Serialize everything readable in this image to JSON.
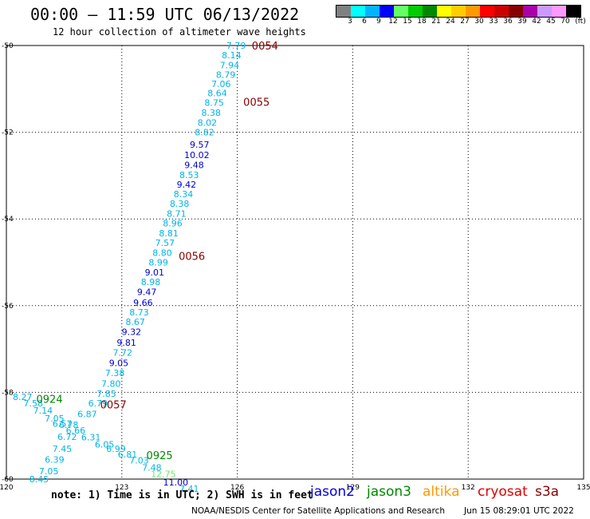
{
  "header": {
    "title": "00:00 – 11:59 UTC 06/13/2022",
    "subtitle": "12 hour collection of altimeter wave heights"
  },
  "legend": {
    "unit": "(ft)",
    "colors": [
      "#808080",
      "#00ffff",
      "#00b4ff",
      "#0000ff",
      "#64ff64",
      "#00cc00",
      "#008800",
      "#ffff00",
      "#ffcc00",
      "#ff9900",
      "#ff0000",
      "#cc0000",
      "#880000",
      "#aa00aa",
      "#cc99ff",
      "#ff99ff",
      "#000000"
    ],
    "labels": [
      "3",
      "6",
      "9",
      "12",
      "15",
      "18",
      "21",
      "24",
      "27",
      "30",
      "33",
      "36",
      "39",
      "42",
      "45",
      "70"
    ]
  },
  "map": {
    "x_ticks": [
      "120",
      "123",
      "126",
      "129",
      "132",
      "135"
    ],
    "y_ticks": [
      "-50",
      "-52",
      "-54",
      "-56",
      "-58",
      "-60"
    ],
    "lon_range": [
      120,
      135
    ],
    "lat_range": [
      -60,
      -50
    ]
  },
  "colors": {
    "cyan": "#00b4e6",
    "blue": "#0000cc",
    "lightgreen": "#66ee66",
    "time_dark": "#880000",
    "time_green": "#008800"
  },
  "wave_heights": [
    {
      "text": "7.79",
      "lon": 125.97,
      "lat": -50.0,
      "color": "cyan"
    },
    {
      "text": "8.14",
      "lon": 125.85,
      "lat": -50.22,
      "color": "cyan"
    },
    {
      "text": "7.94",
      "lon": 125.8,
      "lat": -50.45,
      "color": "cyan"
    },
    {
      "text": "8.79",
      "lon": 125.7,
      "lat": -50.67,
      "color": "cyan"
    },
    {
      "text": "7.06",
      "lon": 125.58,
      "lat": -50.88,
      "color": "cyan"
    },
    {
      "text": "8.64",
      "lon": 125.48,
      "lat": -51.1,
      "color": "cyan"
    },
    {
      "text": "8.75",
      "lon": 125.4,
      "lat": -51.32,
      "color": "cyan"
    },
    {
      "text": "8.38",
      "lon": 125.32,
      "lat": -51.55,
      "color": "cyan"
    },
    {
      "text": "8.02",
      "lon": 125.22,
      "lat": -51.78,
      "color": "cyan"
    },
    {
      "text": "8.82",
      "lon": 125.15,
      "lat": -52.0,
      "color": "cyan"
    },
    {
      "text": "9.57",
      "lon": 125.02,
      "lat": -52.28,
      "color": "blue"
    },
    {
      "text": "10.02",
      "lon": 124.95,
      "lat": -52.52,
      "color": "blue"
    },
    {
      "text": "9.48",
      "lon": 124.88,
      "lat": -52.75,
      "color": "blue"
    },
    {
      "text": "8.53",
      "lon": 124.75,
      "lat": -52.98,
      "color": "cyan"
    },
    {
      "text": "9.42",
      "lon": 124.68,
      "lat": -53.2,
      "color": "blue"
    },
    {
      "text": "8.34",
      "lon": 124.6,
      "lat": -53.43,
      "color": "cyan"
    },
    {
      "text": "8.38",
      "lon": 124.5,
      "lat": -53.65,
      "color": "cyan"
    },
    {
      "text": "8.71",
      "lon": 124.42,
      "lat": -53.88,
      "color": "cyan"
    },
    {
      "text": "8.96",
      "lon": 124.32,
      "lat": -54.1,
      "color": "cyan"
    },
    {
      "text": "8.81",
      "lon": 124.22,
      "lat": -54.33,
      "color": "cyan"
    },
    {
      "text": "7.57",
      "lon": 124.12,
      "lat": -54.55,
      "color": "cyan"
    },
    {
      "text": "8.80",
      "lon": 124.05,
      "lat": -54.78,
      "color": "cyan"
    },
    {
      "text": "8.99",
      "lon": 123.95,
      "lat": -55.0,
      "color": "cyan"
    },
    {
      "text": "9.01",
      "lon": 123.85,
      "lat": -55.23,
      "color": "blue"
    },
    {
      "text": "8.98",
      "lon": 123.75,
      "lat": -55.45,
      "color": "cyan"
    },
    {
      "text": "9.47",
      "lon": 123.65,
      "lat": -55.68,
      "color": "blue"
    },
    {
      "text": "9.66",
      "lon": 123.55,
      "lat": -55.93,
      "color": "blue"
    },
    {
      "text": "8.73",
      "lon": 123.45,
      "lat": -56.15,
      "color": "cyan"
    },
    {
      "text": "8.67",
      "lon": 123.35,
      "lat": -56.37,
      "color": "cyan"
    },
    {
      "text": "9.32",
      "lon": 123.25,
      "lat": -56.6,
      "color": "blue"
    },
    {
      "text": "9.81",
      "lon": 123.12,
      "lat": -56.85,
      "color": "blue"
    },
    {
      "text": "7.72",
      "lon": 123.02,
      "lat": -57.08,
      "color": "cyan"
    },
    {
      "text": "9.05",
      "lon": 122.92,
      "lat": -57.32,
      "color": "blue"
    },
    {
      "text": "7.38",
      "lon": 122.82,
      "lat": -57.55,
      "color": "cyan"
    },
    {
      "text": "7.80",
      "lon": 122.72,
      "lat": -57.8,
      "color": "cyan"
    },
    {
      "text": "7.85",
      "lon": 122.6,
      "lat": -58.03,
      "color": "cyan"
    },
    {
      "text": "6.79",
      "lon": 122.38,
      "lat": -58.25,
      "color": "cyan"
    },
    {
      "text": "6.87",
      "lon": 122.1,
      "lat": -58.5,
      "color": "cyan"
    },
    {
      "text": "8.27",
      "lon": 120.42,
      "lat": -58.1,
      "color": "cyan"
    },
    {
      "text": "7.58",
      "lon": 120.7,
      "lat": -58.25,
      "color": "cyan"
    },
    {
      "text": "7.14",
      "lon": 120.95,
      "lat": -58.42,
      "color": "cyan"
    },
    {
      "text": "7.05",
      "lon": 121.25,
      "lat": -58.6,
      "color": "cyan"
    },
    {
      "text": "6.57",
      "lon": 121.45,
      "lat": -58.72,
      "color": "cyan"
    },
    {
      "text": "6.78",
      "lon": 121.62,
      "lat": -58.75,
      "color": "cyan"
    },
    {
      "text": "6.66",
      "lon": 121.8,
      "lat": -58.88,
      "color": "cyan"
    },
    {
      "text": "6.72",
      "lon": 121.58,
      "lat": -59.02,
      "color": "cyan"
    },
    {
      "text": "6.31",
      "lon": 122.2,
      "lat": -59.03,
      "color": "cyan"
    },
    {
      "text": "6.05",
      "lon": 122.55,
      "lat": -59.2,
      "color": "cyan"
    },
    {
      "text": "7.45",
      "lon": 121.45,
      "lat": -59.3,
      "color": "cyan"
    },
    {
      "text": "6.99",
      "lon": 122.85,
      "lat": -59.3,
      "color": "cyan"
    },
    {
      "text": "6.81",
      "lon": 123.15,
      "lat": -59.43,
      "color": "cyan"
    },
    {
      "text": "6.39",
      "lon": 121.25,
      "lat": -59.55,
      "color": "cyan"
    },
    {
      "text": "7.03",
      "lon": 123.45,
      "lat": -59.57,
      "color": "cyan"
    },
    {
      "text": "7.48",
      "lon": 123.78,
      "lat": -59.73,
      "color": "cyan"
    },
    {
      "text": "7.05",
      "lon": 121.1,
      "lat": -59.82,
      "color": "cyan"
    },
    {
      "text": "12.75",
      "lon": 124.08,
      "lat": -59.88,
      "color": "lightgreen"
    },
    {
      "text": "8.45",
      "lon": 120.85,
      "lat": -60.0,
      "color": "cyan"
    },
    {
      "text": "11.00",
      "lon": 124.4,
      "lat": -60.07,
      "color": "blue"
    },
    {
      "text": "7.41",
      "lon": 124.75,
      "lat": -60.22,
      "color": "cyan"
    }
  ],
  "time_marks": [
    {
      "text": "0054",
      "lon": 126.72,
      "lat": -50.0,
      "color": "time_dark"
    },
    {
      "text": "0055",
      "lon": 126.5,
      "lat": -51.3,
      "color": "time_dark"
    },
    {
      "text": "0056",
      "lon": 124.82,
      "lat": -54.85,
      "color": "time_dark"
    },
    {
      "text": "0057",
      "lon": 122.78,
      "lat": -58.28,
      "color": "time_dark"
    },
    {
      "text": "0924",
      "lon": 121.12,
      "lat": -58.15,
      "color": "time_green"
    },
    {
      "text": "0925",
      "lon": 123.98,
      "lat": -59.45,
      "color": "time_green"
    }
  ],
  "footer": {
    "note": "note: 1) Time is in UTC; 2) SWH is in feet",
    "satellites": [
      {
        "name": "jason2",
        "color": "#0000dd"
      },
      {
        "name": "jason3",
        "color": "#008800"
      },
      {
        "name": "altika",
        "color": "#ff9900"
      },
      {
        "name": "cryosat",
        "color": "#dd0000"
      },
      {
        "name": "s3a",
        "color": "#880000"
      }
    ],
    "credit": "NOAA/NESDIS Center for Satellite Applications and Research",
    "timestamp": "Jun 15 08:29:01 UTC 2022"
  }
}
